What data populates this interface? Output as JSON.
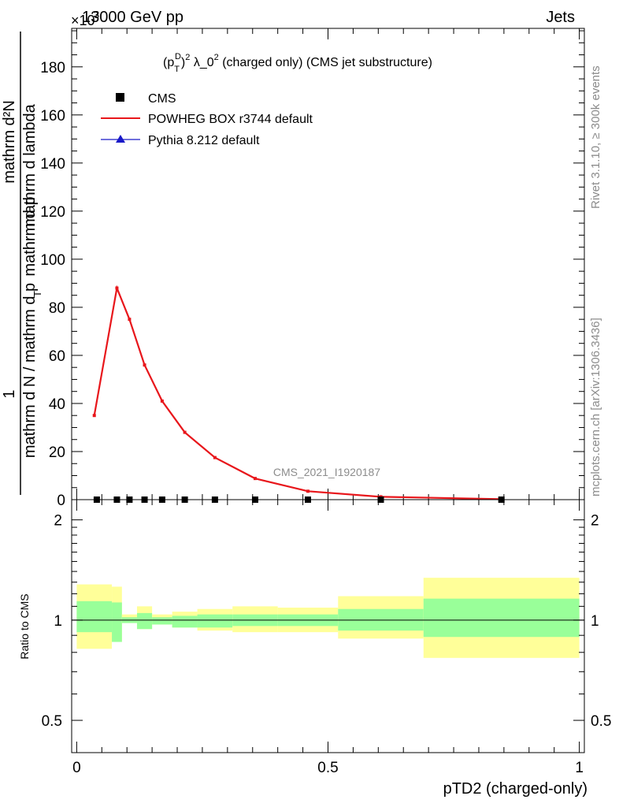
{
  "header": {
    "beam": "13000 GeV pp",
    "process": "Jets",
    "exponent": "×10",
    "exponent_power": "3"
  },
  "side_labels": {
    "rivet": "Rivet 3.1.10, ≥ 300k events",
    "mcplots": "mcplots.cern.ch [arXiv:1306.3436]"
  },
  "y_title": {
    "numerator": "mathrm d²N",
    "numerator_prefix": "1",
    "denominator": "mathrm d N / mathrm d p",
    "denominator_mid": "mathrm d p",
    "denominator_end": "mathrm d lambda",
    "sub": "T"
  },
  "plot_title": {
    "main": "(p",
    "sub": "T",
    "sup_d": "D",
    "rest": ")",
    "sup2": "2",
    "lambda": " λ_0",
    "sup3": "2",
    "tail": " (charged only) (CMS jet substructure)"
  },
  "legend": {
    "cms": "CMS",
    "powheg": "POWHEG BOX r3744 default",
    "pythia": "Pythia 8.212 default"
  },
  "analysis_id": "CMS_2021_I1920187",
  "ratio_ylabel": "Ratio to CMS",
  "xlabel": "pTD2 (charged-only)",
  "colors": {
    "powheg": "#e8161b",
    "pythia": "#1919c8",
    "band_inner": "#99ff99",
    "band_outer": "#ffff99"
  },
  "chart_data": [
    {
      "type": "line",
      "panel": "main",
      "title": "(p_T^D)^2 λ_0^2 (charged only) (CMS jet substructure)",
      "xlabel": "pTD2 (charged-only)",
      "ylabel": "1/(dN/dp_T) d²N/(dp_T dλ)  [×10^3]",
      "xlim": [
        -0.01,
        1.01
      ],
      "ylim": [
        0,
        196
      ],
      "yticks": [
        0,
        20,
        40,
        60,
        80,
        100,
        120,
        140,
        160,
        180
      ],
      "series": [
        {
          "name": "CMS",
          "marker": "square",
          "x": [
            0.04,
            0.08,
            0.105,
            0.135,
            0.17,
            0.215,
            0.275,
            0.355,
            0.46,
            0.605,
            0.845
          ],
          "y": [
            0,
            0,
            0,
            0,
            0,
            0,
            0,
            0,
            0,
            0,
            0
          ]
        },
        {
          "name": "POWHEG BOX r3744 default",
          "marker": "line",
          "x": [
            0.035,
            0.08,
            0.105,
            0.135,
            0.17,
            0.215,
            0.275,
            0.355,
            0.46,
            0.605,
            0.845
          ],
          "y": [
            35,
            88,
            75,
            56,
            41,
            28,
            17.5,
            8.8,
            3.5,
            1.2,
            0.2
          ]
        },
        {
          "name": "Pythia 8.212 default",
          "marker": "triangle",
          "x": [],
          "y": []
        }
      ]
    },
    {
      "type": "area",
      "panel": "ratio",
      "ylabel": "Ratio to CMS",
      "xlabel": "pTD2 (charged-only)",
      "xlim": [
        -0.01,
        1.01
      ],
      "ylim": [
        0.4,
        2.3
      ],
      "yscale": "log",
      "ytick_labels": [
        "0.5",
        "1",
        "2"
      ],
      "xtick_labels": [
        "0",
        "0.5",
        "1"
      ],
      "bins": [
        {
          "lo": 0.0,
          "hi": 0.07,
          "inner": [
            0.92,
            1.14
          ],
          "outer": [
            0.82,
            1.28
          ]
        },
        {
          "lo": 0.07,
          "hi": 0.09,
          "inner": [
            0.86,
            1.13
          ],
          "outer": [
            0.86,
            1.26
          ]
        },
        {
          "lo": 0.09,
          "hi": 0.12,
          "inner": [
            0.98,
            1.02
          ],
          "outer": [
            0.98,
            1.04
          ]
        },
        {
          "lo": 0.12,
          "hi": 0.15,
          "inner": [
            0.94,
            1.05
          ],
          "outer": [
            0.94,
            1.1
          ]
        },
        {
          "lo": 0.15,
          "hi": 0.19,
          "inner": [
            0.97,
            1.02
          ],
          "outer": [
            0.97,
            1.04
          ]
        },
        {
          "lo": 0.19,
          "hi": 0.24,
          "inner": [
            0.95,
            1.03
          ],
          "outer": [
            0.95,
            1.06
          ]
        },
        {
          "lo": 0.24,
          "hi": 0.31,
          "inner": [
            0.95,
            1.04
          ],
          "outer": [
            0.93,
            1.08
          ]
        },
        {
          "lo": 0.31,
          "hi": 0.4,
          "inner": [
            0.96,
            1.04
          ],
          "outer": [
            0.92,
            1.1
          ]
        },
        {
          "lo": 0.4,
          "hi": 0.52,
          "inner": [
            0.96,
            1.04
          ],
          "outer": [
            0.92,
            1.09
          ]
        },
        {
          "lo": 0.52,
          "hi": 0.69,
          "inner": [
            0.93,
            1.08
          ],
          "outer": [
            0.88,
            1.18
          ]
        },
        {
          "lo": 0.69,
          "hi": 1.0,
          "inner": [
            0.89,
            1.16
          ],
          "outer": [
            0.77,
            1.34
          ]
        }
      ]
    }
  ]
}
